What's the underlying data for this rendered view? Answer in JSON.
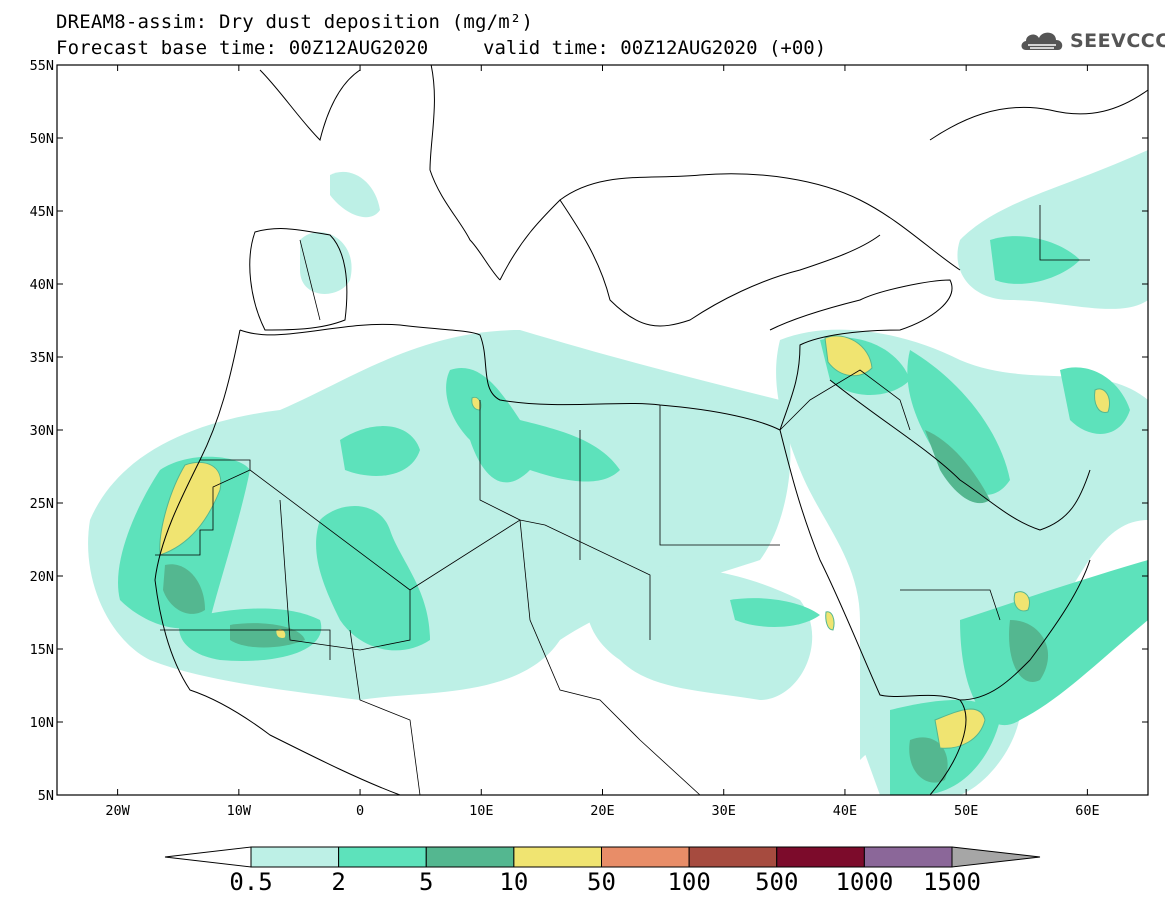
{
  "header": {
    "title_line1": "DREAM8-assim: Dry dust deposition (mg/m²)",
    "title_line2": "Forecast base time: 00Z12AUG2020",
    "valid_time": "valid time: 00Z12AUG2020 (+00)",
    "logo_text": "SEEVCCC",
    "logo_icon": "cloud-logo-icon"
  },
  "map": {
    "lon_labels": [
      "20W",
      "10W",
      "0",
      "10E",
      "20E",
      "30E",
      "40E",
      "50E",
      "60E"
    ],
    "lat_labels": [
      "55N",
      "50N",
      "45N",
      "40N",
      "35N",
      "30N",
      "25N",
      "20N",
      "15N",
      "10N",
      "5N"
    ],
    "region": "North Africa, Middle East and Europe"
  },
  "colorbar": {
    "labels": [
      "0.5",
      "2",
      "5",
      "10",
      "50",
      "100",
      "500",
      "1000",
      "1500"
    ],
    "colors": [
      "#ffffff",
      "#bdf0e6",
      "#5de2bb",
      "#54b790",
      "#f0e471",
      "#e88d68",
      "#a64b3f",
      "#7c0b2b",
      "#8b6799",
      "#a6a6a6"
    ]
  }
}
